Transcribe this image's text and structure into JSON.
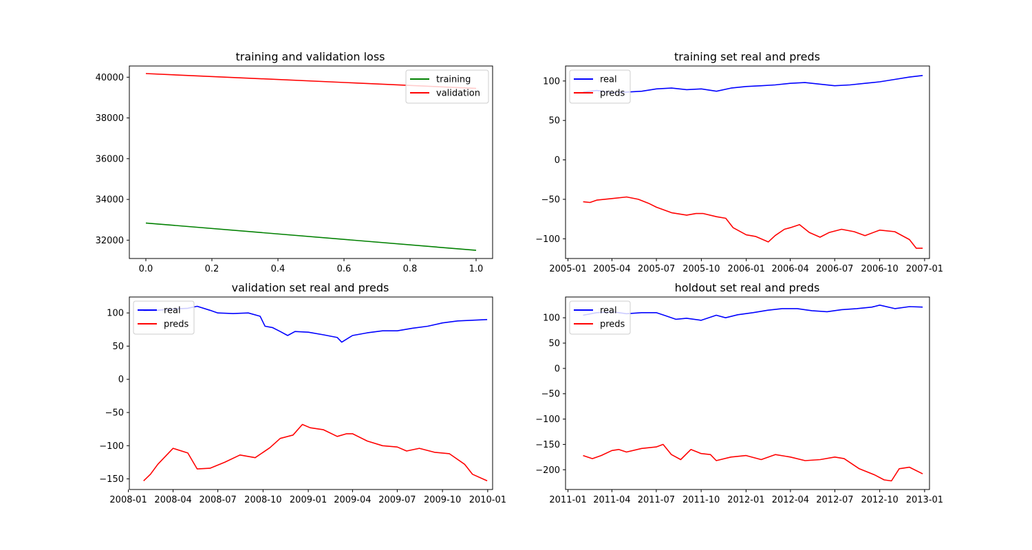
{
  "chart_data": [
    {
      "id": "loss",
      "type": "line",
      "title": "training and validation loss",
      "xlabel": "",
      "ylabel": "",
      "x_axis": "numeric",
      "xlim": [
        -0.05,
        1.05
      ],
      "ylim": [
        31100,
        40550
      ],
      "xticks": [
        0.0,
        0.2,
        0.4,
        0.6,
        0.8,
        1.0
      ],
      "xtick_labels": [
        "0.0",
        "0.2",
        "0.4",
        "0.6",
        "0.8",
        "1.0"
      ],
      "yticks": [
        32000,
        34000,
        36000,
        38000,
        40000
      ],
      "ytick_labels": [
        "32000",
        "34000",
        "36000",
        "38000",
        "40000"
      ],
      "legend": "upper right",
      "grid": false,
      "series": [
        {
          "name": "training",
          "color": "#008000",
          "x": [
            0,
            1
          ],
          "y": [
            32840,
            31500
          ]
        },
        {
          "name": "validation",
          "color": "#ff0000",
          "x": [
            0,
            1
          ],
          "y": [
            40180,
            39450
          ]
        }
      ]
    },
    {
      "id": "train",
      "type": "line",
      "title": "training set real and preds",
      "xlabel": "",
      "ylabel": "",
      "x_axis": "date",
      "xlim": [
        "2004-12-27",
        "2007-01-11"
      ],
      "ylim": [
        -125,
        119
      ],
      "xticks": [
        "2005-01-01",
        "2005-04-01",
        "2005-07-01",
        "2005-10-01",
        "2006-01-01",
        "2006-04-01",
        "2006-07-01",
        "2006-10-01",
        "2007-01-01"
      ],
      "xtick_labels": [
        "2005-01",
        "2005-04",
        "2005-07",
        "2005-10",
        "2006-01",
        "2006-04",
        "2006-07",
        "2006-10",
        "2007-01"
      ],
      "yticks": [
        -100,
        -50,
        0,
        50,
        100
      ],
      "ytick_labels": [
        "−100",
        "−50",
        "0",
        "50",
        "100"
      ],
      "legend": "upper left",
      "grid": false,
      "series": [
        {
          "name": "real",
          "color": "#0000ff",
          "x": [
            "2005-02-01",
            "2005-03-01",
            "2005-04-01",
            "2005-05-01",
            "2005-06-01",
            "2005-07-01",
            "2005-08-01",
            "2005-09-01",
            "2005-10-01",
            "2005-11-01",
            "2005-12-01",
            "2006-01-01",
            "2006-02-01",
            "2006-03-01",
            "2006-04-01",
            "2006-05-01",
            "2006-06-01",
            "2006-07-01",
            "2006-08-01",
            "2006-09-01",
            "2006-10-01",
            "2006-11-01",
            "2006-12-01",
            "2006-12-28"
          ],
          "y": [
            86,
            88,
            85,
            86,
            87,
            90,
            91,
            89,
            90,
            87,
            91,
            93,
            94,
            95,
            97,
            98,
            96,
            94,
            95,
            97,
            99,
            102,
            105,
            107
          ]
        },
        {
          "name": "preds",
          "color": "#ff0000",
          "x": [
            "2005-02-01",
            "2005-02-15",
            "2005-03-01",
            "2005-04-01",
            "2005-05-01",
            "2005-05-25",
            "2005-06-15",
            "2005-07-01",
            "2005-08-01",
            "2005-09-01",
            "2005-09-20",
            "2005-10-05",
            "2005-11-01",
            "2005-11-20",
            "2005-12-05",
            "2006-01-01",
            "2006-01-20",
            "2006-02-15",
            "2006-03-01",
            "2006-03-20",
            "2006-04-01",
            "2006-04-20",
            "2006-05-10",
            "2006-06-01",
            "2006-06-20",
            "2006-07-15",
            "2006-08-10",
            "2006-09-01",
            "2006-10-01",
            "2006-11-01",
            "2006-12-01",
            "2006-12-15",
            "2006-12-28"
          ],
          "y": [
            -53,
            -54,
            -51,
            -49,
            -47,
            -50,
            -55,
            -60,
            -67,
            -70,
            -68,
            -68,
            -72,
            -74,
            -86,
            -95,
            -97,
            -104,
            -96,
            -88,
            -86,
            -82,
            -92,
            -98,
            -92,
            -88,
            -91,
            -96,
            -89,
            -91,
            -101,
            -112,
            -112
          ]
        }
      ]
    },
    {
      "id": "validation",
      "type": "line",
      "title": "validation set real and preds",
      "xlabel": "",
      "ylabel": "",
      "x_axis": "date",
      "xlim": [
        "2008-01-03",
        "2010-01-11"
      ],
      "ylim": [
        -166,
        124
      ],
      "xticks": [
        "2008-01-01",
        "2008-04-01",
        "2008-07-01",
        "2008-10-01",
        "2009-01-01",
        "2009-04-01",
        "2009-07-01",
        "2009-10-01",
        "2010-01-01"
      ],
      "xtick_labels": [
        "2008-01",
        "2008-04",
        "2008-07",
        "2008-10",
        "2009-01",
        "2009-04",
        "2009-07",
        "2009-10",
        "2010-01"
      ],
      "yticks": [
        -150,
        -100,
        -50,
        0,
        50,
        100
      ],
      "ytick_labels": [
        "−150",
        "−100",
        "−50",
        "0",
        "50",
        "100"
      ],
      "legend": "upper left",
      "grid": false,
      "series": [
        {
          "name": "real",
          "color": "#0000ff",
          "x": [
            "2008-02-01",
            "2008-03-01",
            "2008-04-01",
            "2008-05-01",
            "2008-05-20",
            "2008-06-15",
            "2008-07-01",
            "2008-08-01",
            "2008-09-01",
            "2008-09-25",
            "2008-10-05",
            "2008-10-20",
            "2008-11-05",
            "2008-11-20",
            "2008-12-05",
            "2009-01-01",
            "2009-02-01",
            "2009-03-01",
            "2009-03-10",
            "2009-04-01",
            "2009-05-01",
            "2009-06-01",
            "2009-07-01",
            "2009-08-01",
            "2009-09-01",
            "2009-10-01",
            "2009-11-01",
            "2009-12-01",
            "2009-12-31"
          ],
          "y": [
            103,
            104,
            106,
            107,
            110,
            104,
            100,
            99,
            100,
            95,
            80,
            78,
            72,
            66,
            72,
            71,
            67,
            63,
            56,
            66,
            70,
            73,
            73,
            77,
            80,
            85,
            88,
            89,
            90
          ]
        },
        {
          "name": "preds",
          "color": "#ff0000",
          "x": [
            "2008-02-01",
            "2008-02-15",
            "2008-03-01",
            "2008-04-01",
            "2008-05-01",
            "2008-05-20",
            "2008-06-15",
            "2008-07-15",
            "2008-08-15",
            "2008-09-15",
            "2008-10-15",
            "2008-11-05",
            "2008-12-01",
            "2008-12-20",
            "2009-01-05",
            "2009-02-01",
            "2009-03-01",
            "2009-03-20",
            "2009-04-01",
            "2009-05-01",
            "2009-06-01",
            "2009-07-01",
            "2009-07-20",
            "2009-08-15",
            "2009-09-15",
            "2009-10-15",
            "2009-11-15",
            "2009-12-01",
            "2009-12-31"
          ],
          "y": [
            -153,
            -143,
            -128,
            -104,
            -111,
            -135,
            -134,
            -125,
            -114,
            -118,
            -103,
            -89,
            -84,
            -68,
            -73,
            -76,
            -86,
            -82,
            -82,
            -93,
            -100,
            -102,
            -108,
            -104,
            -110,
            -112,
            -128,
            -143,
            -153
          ]
        }
      ]
    },
    {
      "id": "holdout",
      "type": "line",
      "title": "holdout set real and preds",
      "xlabel": "",
      "ylabel": "",
      "x_axis": "date",
      "xlim": [
        "2010-12-27",
        "2013-01-11"
      ],
      "ylim": [
        -239,
        141
      ],
      "xticks": [
        "2011-01-01",
        "2011-04-01",
        "2011-07-01",
        "2011-10-01",
        "2012-01-01",
        "2012-04-01",
        "2012-07-01",
        "2012-10-01",
        "2013-01-01"
      ],
      "xtick_labels": [
        "2011-01",
        "2011-04",
        "2011-07",
        "2011-10",
        "2012-01",
        "2012-04",
        "2012-07",
        "2012-10",
        "2013-01"
      ],
      "yticks": [
        -200,
        -150,
        -100,
        -50,
        0,
        50,
        100
      ],
      "ytick_labels": [
        "−200",
        "−150",
        "−100",
        "−50",
        "0",
        "50",
        "100"
      ],
      "legend": "upper left",
      "grid": false,
      "series": [
        {
          "name": "real",
          "color": "#0000ff",
          "x": [
            "2011-02-01",
            "2011-03-01",
            "2011-04-01",
            "2011-05-01",
            "2011-06-01",
            "2011-07-01",
            "2011-07-20",
            "2011-08-10",
            "2011-09-01",
            "2011-10-01",
            "2011-11-01",
            "2011-11-20",
            "2011-12-15",
            "2012-01-15",
            "2012-02-15",
            "2012-03-15",
            "2012-04-15",
            "2012-05-15",
            "2012-06-15",
            "2012-07-15",
            "2012-08-15",
            "2012-09-15",
            "2012-10-01",
            "2012-11-01",
            "2012-12-01",
            "2012-12-28"
          ],
          "y": [
            105,
            110,
            112,
            108,
            110,
            110,
            104,
            97,
            99,
            95,
            105,
            100,
            106,
            110,
            115,
            118,
            118,
            114,
            112,
            116,
            118,
            121,
            125,
            118,
            122,
            121
          ]
        },
        {
          "name": "preds",
          "color": "#ff0000",
          "x": [
            "2011-02-01",
            "2011-02-20",
            "2011-03-10",
            "2011-04-01",
            "2011-04-15",
            "2011-05-01",
            "2011-06-01",
            "2011-07-01",
            "2011-07-15",
            "2011-08-01",
            "2011-08-20",
            "2011-09-10",
            "2011-10-01",
            "2011-10-20",
            "2011-11-01",
            "2011-12-01",
            "2012-01-01",
            "2012-02-01",
            "2012-03-01",
            "2012-04-01",
            "2012-05-01",
            "2012-06-01",
            "2012-07-01",
            "2012-07-20",
            "2012-08-20",
            "2012-09-20",
            "2012-10-10",
            "2012-10-25",
            "2012-11-10",
            "2012-12-01",
            "2012-12-28"
          ],
          "y": [
            -172,
            -178,
            -172,
            -162,
            -160,
            -165,
            -158,
            -155,
            -150,
            -170,
            -180,
            -160,
            -168,
            -170,
            -182,
            -175,
            -172,
            -180,
            -170,
            -175,
            -182,
            -180,
            -175,
            -178,
            -198,
            -210,
            -220,
            -222,
            -198,
            -195,
            -208
          ]
        }
      ]
    }
  ]
}
